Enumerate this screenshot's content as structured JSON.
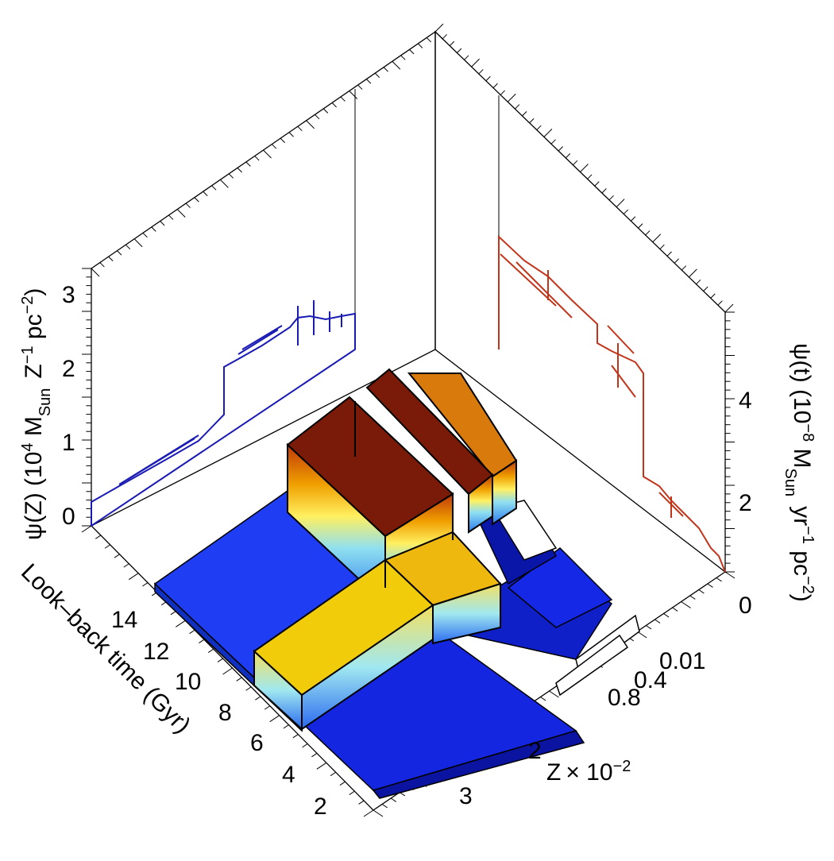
{
  "chart_data": {
    "type": "bar3d",
    "axes": {
      "time": {
        "title": "Look–back time (Gyr)",
        "ticks": [
          "2",
          "4",
          "6",
          "8",
          "10",
          "12",
          "14"
        ],
        "range": [
          1,
          15
        ]
      },
      "metallicity": {
        "title_main": "Z",
        "title_scale": "× 10",
        "title_exp": "−2",
        "ticks": [
          "0.01",
          "0.4",
          "0.8",
          "2",
          "3"
        ],
        "range": [
          0,
          3.5
        ]
      },
      "psi_z": {
        "title_prefix": "ψ(Z) (10",
        "title_exp": "4",
        "title_unit": " M",
        "title_sub": "Sun",
        "title_tail": "Z",
        "title_tail_exp": "−1",
        "title_tail2": " pc",
        "title_tail2_exp": "−2",
        "title_close": ")",
        "ticks": [
          "0",
          "1",
          "2",
          "3"
        ],
        "range": [
          0,
          3.4
        ],
        "color": "#1414c8"
      },
      "psi_t": {
        "title_prefix": "ψ(t) (10",
        "title_exp": "−8",
        "title_unit": " M",
        "title_sub": "Sun",
        "title_tail": "yr",
        "title_tail_exp": "−1",
        "title_tail2": " pc",
        "title_tail2_exp": "−2",
        "title_close": ")",
        "ticks": [
          "0",
          "2",
          "4"
        ],
        "range": [
          0,
          5.5
        ],
        "color": "#c83214"
      }
    },
    "bars": [
      {
        "time": 8.5,
        "z": 0.3,
        "height": 1.0,
        "color": "#7a1a08"
      },
      {
        "time": 10.8,
        "z": 0.25,
        "height": 1.1,
        "color": "#7a1a08"
      },
      {
        "time": 12.5,
        "z": 0.2,
        "height": 1.0,
        "color": "#df7a10"
      },
      {
        "time": 6.5,
        "z": 0.9,
        "height": 0.55,
        "color": "#efb80e"
      },
      {
        "time": 4.5,
        "z": 1.4,
        "height": 0.55,
        "color": "#f0cc0a"
      },
      {
        "time": 9.0,
        "z": 1.8,
        "height": 0.05,
        "color": "#1f3df2"
      },
      {
        "time": 3.0,
        "z": 2.8,
        "height": 0.05,
        "color": "#1423d2"
      }
    ],
    "metallicity_projection": [
      {
        "z": 0.05,
        "value": 0.2
      },
      {
        "z": 1.4,
        "value": 1.5
      },
      {
        "z": 2.2,
        "value": 2.0
      },
      {
        "z": 3.2,
        "value": 2.2
      }
    ],
    "time_projection": [
      {
        "time": 1.0,
        "value": 0.3
      },
      {
        "time": 3.0,
        "value": 1.2
      },
      {
        "time": 8.0,
        "value": 3.4
      },
      {
        "time": 11.0,
        "value": 4.6
      },
      {
        "time": 14.0,
        "value": 4.6
      }
    ]
  }
}
